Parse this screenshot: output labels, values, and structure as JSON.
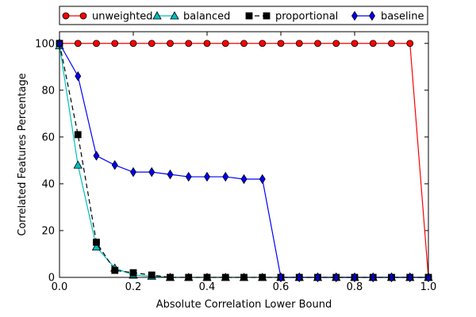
{
  "chart_data": {
    "type": "line",
    "xlabel": "Absolute Correlation Lower Bound",
    "ylabel": "Correlated Features Percentage",
    "xlim": [
      0.0,
      1.0
    ],
    "ylim": [
      0,
      105
    ],
    "xticks": [
      0.0,
      0.2,
      0.4,
      0.6,
      0.8,
      1.0
    ],
    "xtick_labels": [
      "0.0",
      "0.2",
      "0.4",
      "0.6",
      "0.8",
      "1.0"
    ],
    "yticks": [
      0,
      20,
      40,
      60,
      80,
      100
    ],
    "ytick_labels": [
      "0",
      "20",
      "40",
      "60",
      "80",
      "100"
    ],
    "legend_position": "top, above plot",
    "grid": false,
    "series": [
      {
        "name": "unweighted",
        "color": "#ff0000",
        "marker": "circle",
        "linestyle": "solid",
        "x": [
          0.0,
          0.05,
          0.1,
          0.15,
          0.2,
          0.25,
          0.3,
          0.35,
          0.4,
          0.45,
          0.5,
          0.55,
          0.6,
          0.65,
          0.7,
          0.75,
          0.8,
          0.85,
          0.9,
          0.95,
          1.0
        ],
        "y": [
          100,
          100,
          100,
          100,
          100,
          100,
          100,
          100,
          100,
          100,
          100,
          100,
          100,
          100,
          100,
          100,
          100,
          100,
          100,
          100,
          0
        ]
      },
      {
        "name": "balanced",
        "color": "#00bfbf",
        "marker": "triangle",
        "linestyle": "solid",
        "x": [
          0.0,
          0.05,
          0.1,
          0.15,
          0.2,
          0.25,
          0.3,
          0.35,
          0.4,
          0.45,
          0.5,
          0.55,
          0.6,
          0.65,
          0.7,
          0.75,
          0.8,
          0.85,
          0.9,
          0.95,
          1.0
        ],
        "y": [
          99,
          48,
          13,
          4,
          1,
          0.5,
          0,
          0,
          0,
          0,
          0,
          0,
          0,
          0,
          0,
          0,
          0,
          0,
          0,
          0,
          0
        ]
      },
      {
        "name": "proportional",
        "color": "#000000",
        "marker": "square",
        "linestyle": "dashed",
        "x": [
          0.0,
          0.05,
          0.1,
          0.15,
          0.2,
          0.25,
          0.3,
          0.35,
          0.4,
          0.45,
          0.5,
          0.55,
          0.6,
          0.65,
          0.7,
          0.75,
          0.8,
          0.85,
          0.9,
          0.95,
          1.0
        ],
        "y": [
          100,
          61,
          15,
          3,
          2,
          1,
          0,
          0,
          0,
          0,
          0,
          0,
          0,
          0,
          0,
          0,
          0,
          0,
          0,
          0,
          0
        ]
      },
      {
        "name": "baseline",
        "color": "#0000ff",
        "marker": "diamond",
        "linestyle": "solid",
        "x": [
          0.0,
          0.05,
          0.1,
          0.15,
          0.2,
          0.25,
          0.3,
          0.35,
          0.4,
          0.45,
          0.5,
          0.55,
          0.6,
          0.65,
          0.7,
          0.75,
          0.8,
          0.85,
          0.9,
          0.95,
          1.0
        ],
        "y": [
          100,
          86,
          52,
          48,
          45,
          45,
          44,
          43,
          43,
          43,
          42,
          42,
          0,
          0,
          0,
          0,
          0,
          0,
          0,
          0,
          0
        ]
      }
    ]
  }
}
